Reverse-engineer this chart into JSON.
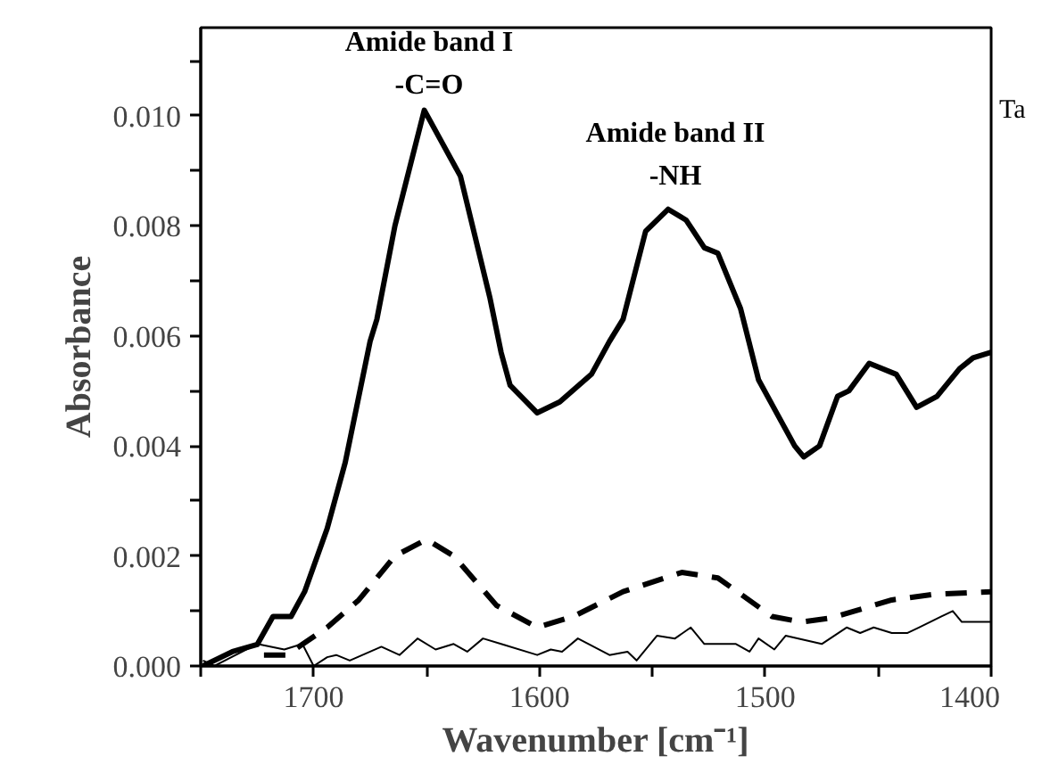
{
  "chart_data": {
    "type": "line",
    "xlabel": "Wavenumber [cm⁻¹]",
    "ylabel": "Absorbance",
    "xlim": [
      1750,
      1400
    ],
    "ylim": [
      0,
      0.0116
    ],
    "xticks": [
      {
        "value": 1750,
        "label": null
      },
      1700,
      {
        "value": 1650,
        "label": null
      },
      1600,
      {
        "value": 1550,
        "label": null
      },
      1500,
      {
        "value": 1450,
        "label": null
      },
      1400
    ],
    "yticks": [
      {
        "value": 0,
        "label": "0.000"
      },
      {
        "value": 0.001,
        "label": null
      },
      {
        "value": 0.002,
        "label": "0.002"
      },
      {
        "value": 0.003,
        "label": null
      },
      {
        "value": 0.004,
        "label": "0.004"
      },
      {
        "value": 0.005,
        "label": null
      },
      {
        "value": 0.006,
        "label": "0.006"
      },
      {
        "value": 0.007,
        "label": null
      },
      {
        "value": 0.008,
        "label": "0.008"
      },
      {
        "value": 0.009,
        "label": null
      },
      {
        "value": 0.01,
        "label": "0.010"
      },
      {
        "value": 0.011,
        "label": null
      }
    ],
    "grid": false,
    "marker": "none",
    "annotations": [
      "Amide band I",
      "-C=O",
      "Amide band II",
      "-NH",
      "Ta"
    ],
    "series": [
      {
        "color": "#000000",
        "line_style": "solid",
        "x": [
          1749,
          1736,
          1725,
          1718,
          1710,
          1704,
          1694,
          1686,
          1675,
          1672,
          1664,
          1651,
          1635,
          1622,
          1617,
          1613,
          1601,
          1591,
          1577,
          1569,
          1563,
          1553,
          1543,
          1535,
          1527,
          1521,
          1511,
          1503,
          1495,
          1487,
          1483,
          1476,
          1468,
          1463,
          1454,
          1442,
          1433,
          1424,
          1414,
          1408,
          1400
        ],
        "values": [
          0,
          0.00026,
          0.00039,
          0.0009,
          0.0009,
          0.00135,
          0.0025,
          0.0037,
          0.0059,
          0.0063,
          0.008,
          0.0101,
          0.0089,
          0.0067,
          0.0057,
          0.0051,
          0.0046,
          0.0048,
          0.0053,
          0.0059,
          0.0063,
          0.0079,
          0.0083,
          0.0081,
          0.0076,
          0.0075,
          0.0065,
          0.0052,
          0.0046,
          0.004,
          0.0038,
          0.004,
          0.0049,
          0.005,
          0.0055,
          0.0053,
          0.0047,
          0.0049,
          0.0054,
          0.0056,
          0.0057
        ]
      },
      {
        "color": "#000000",
        "line_style": "dashed",
        "x": [
          1722,
          1712,
          1694,
          1680,
          1664,
          1650,
          1638,
          1619,
          1601,
          1585,
          1563,
          1537,
          1521,
          1497,
          1484,
          1471,
          1444,
          1426,
          1400
        ],
        "values": [
          0.0002,
          0.0002,
          0.0007,
          0.0012,
          0.002,
          0.0023,
          0.002,
          0.0011,
          0.0007,
          0.0009,
          0.00135,
          0.0017,
          0.0016,
          0.0009,
          0.0008,
          0.00087,
          0.0012,
          0.0013,
          0.00135
        ]
      },
      {
        "color": "#000000",
        "line_style": "solid",
        "x": [
          1749,
          1744,
          1725,
          1713,
          1705,
          1700,
          1694,
          1690,
          1684,
          1670,
          1662,
          1654,
          1646,
          1638,
          1632,
          1625,
          1617,
          1601,
          1595,
          1590,
          1583,
          1569,
          1561,
          1557,
          1548,
          1540,
          1533,
          1527,
          1513,
          1507,
          1503,
          1496,
          1491,
          1475,
          1464,
          1458,
          1452,
          1444,
          1437,
          1432,
          1422,
          1417,
          1413,
          1405,
          1400
        ],
        "values": [
          0.0001,
          0,
          0.0004,
          0.0003,
          0.0004,
          0,
          0.00016,
          0.0002,
          0.0001,
          0.00035,
          0.0002,
          0.0005,
          0.0003,
          0.0004,
          0.00026,
          0.0005,
          0.0004,
          0.0002,
          0.0003,
          0.00026,
          0.0005,
          0.0002,
          0.00026,
          0.0001,
          0.00055,
          0.0005,
          0.0007,
          0.0004,
          0.0004,
          0.00026,
          0.0005,
          0.0003,
          0.00055,
          0.0004,
          0.0007,
          0.0006,
          0.0007,
          0.0006,
          0.0006,
          0.0007,
          0.0009,
          0.001,
          0.0008,
          0.0008,
          0.0008
        ]
      }
    ]
  }
}
